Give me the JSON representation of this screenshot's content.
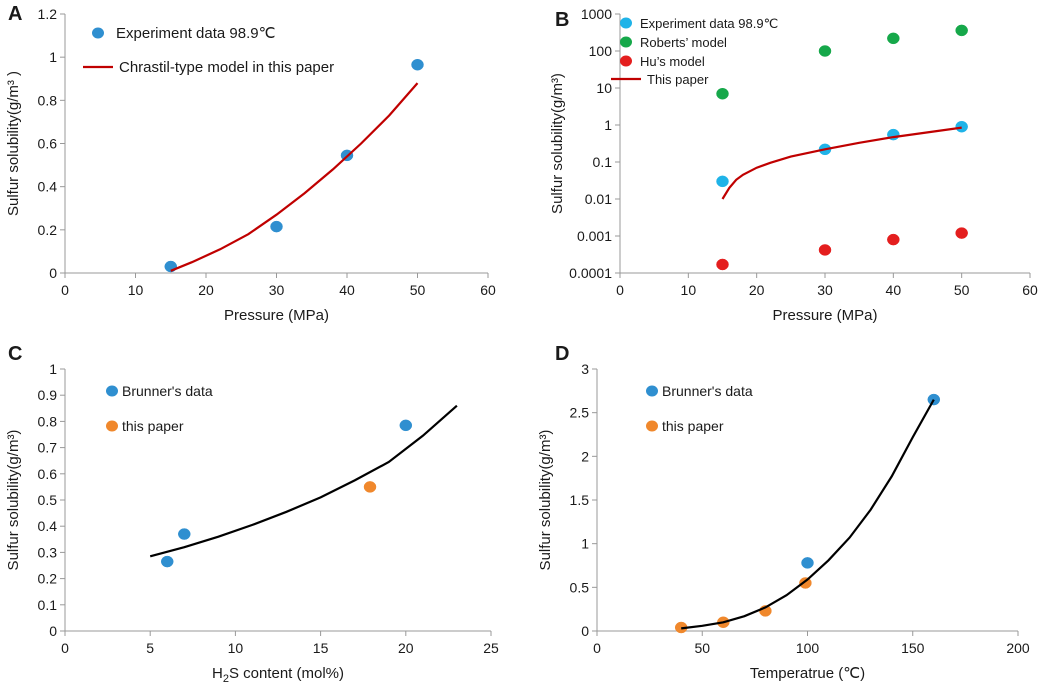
{
  "colors": {
    "blue": "#2f8fd0",
    "cyan": "#1fb3e8",
    "green": "#16a84a",
    "red": "#e41e1e",
    "orange": "#f0882c",
    "fit_red": "#c00000",
    "fit_black": "#000000",
    "axis": "#999999"
  },
  "chart_data": [
    {
      "panel": "A",
      "type": "scatter",
      "xlabel": "Pressure (MPa)",
      "ylabel": "Sulfur solubility(g/m³ )",
      "xlim": [
        0,
        60
      ],
      "ylim": [
        0,
        1.2
      ],
      "x_ticks": [
        "0",
        "10",
        "20",
        "30",
        "40",
        "50",
        "60"
      ],
      "y_ticks": [
        "0",
        "0.2",
        "0.4",
        "0.6",
        "0.8",
        "1",
        "1.2"
      ],
      "series": [
        {
          "name": "Experiment data 98.9℃",
          "kind": "points",
          "color": "#2f8fd0",
          "x": [
            15,
            30,
            40,
            50
          ],
          "y": [
            0.03,
            0.215,
            0.545,
            0.965
          ]
        },
        {
          "name": "Chrastil-type model in this paper",
          "kind": "line",
          "color": "#c00000",
          "x": [
            15,
            18,
            22,
            26,
            30,
            34,
            38,
            42,
            46,
            50
          ],
          "y": [
            0.01,
            0.05,
            0.11,
            0.18,
            0.27,
            0.37,
            0.48,
            0.6,
            0.73,
            0.88
          ]
        }
      ]
    },
    {
      "panel": "B",
      "type": "scatter",
      "yscale": "log",
      "xlabel": "Pressure (MPa)",
      "ylabel": "Sulfur solubility(g/m³)",
      "xlim": [
        0,
        60
      ],
      "ylim": [
        0.0001,
        1000
      ],
      "x_ticks": [
        "0",
        "10",
        "20",
        "30",
        "40",
        "50",
        "60"
      ],
      "y_ticks": [
        "0.0001",
        "0.001",
        "0.01",
        "0.1",
        "1",
        "10",
        "100",
        "1000"
      ],
      "series": [
        {
          "name": "Experiment data 98.9℃",
          "kind": "points",
          "color": "#1fb3e8",
          "x": [
            15,
            30,
            40,
            50
          ],
          "y": [
            0.03,
            0.22,
            0.55,
            0.9
          ]
        },
        {
          "name": "Roberts’ model",
          "kind": "points",
          "color": "#16a84a",
          "x": [
            15,
            30,
            40,
            50
          ],
          "y": [
            7,
            100,
            220,
            360
          ]
        },
        {
          "name": "Hu’s model",
          "kind": "points",
          "color": "#e41e1e",
          "x": [
            15,
            30,
            40,
            50
          ],
          "y": [
            0.00017,
            0.00042,
            0.0008,
            0.0012
          ]
        },
        {
          "name": "This paper",
          "kind": "line",
          "color": "#c00000",
          "x": [
            15,
            16,
            17,
            18,
            20,
            22,
            25,
            30,
            35,
            40,
            45,
            50
          ],
          "y": [
            0.01,
            0.02,
            0.033,
            0.045,
            0.07,
            0.095,
            0.14,
            0.22,
            0.33,
            0.47,
            0.63,
            0.85
          ]
        }
      ]
    },
    {
      "panel": "C",
      "type": "scatter",
      "xlabel_pre": "H",
      "xlabel_sub": "2",
      "xlabel_post": "S content (mol%)",
      "ylabel": "Sulfur solubility(g/m³)",
      "xlim": [
        0,
        25
      ],
      "ylim": [
        0,
        1
      ],
      "x_ticks": [
        "0",
        "5",
        "10",
        "15",
        "20",
        "25"
      ],
      "y_ticks": [
        "0",
        "0.1",
        "0.2",
        "0.3",
        "0.4",
        "0.5",
        "0.6",
        "0.7",
        "0.8",
        "0.9",
        "1"
      ],
      "series": [
        {
          "name": "Brunner's data",
          "kind": "points",
          "color": "#2f8fd0",
          "x": [
            6.0,
            7.0,
            20.0
          ],
          "y": [
            0.265,
            0.37,
            0.785
          ]
        },
        {
          "name": "this paper",
          "kind": "points",
          "color": "#f0882c",
          "x": [
            17.9
          ],
          "y": [
            0.55
          ]
        },
        {
          "name": "fit",
          "kind": "line",
          "color": "#000000",
          "x": [
            5,
            7,
            9,
            11,
            13,
            15,
            17,
            19,
            21,
            23
          ],
          "y": [
            0.285,
            0.32,
            0.36,
            0.405,
            0.455,
            0.51,
            0.575,
            0.645,
            0.745,
            0.86
          ]
        }
      ]
    },
    {
      "panel": "D",
      "type": "scatter",
      "xlabel": "Temperatrue (℃)",
      "ylabel": "Sulfur solubility(g/m³)",
      "xlim": [
        0,
        200
      ],
      "ylim": [
        0,
        3
      ],
      "x_ticks": [
        "0",
        "50",
        "100",
        "150",
        "200"
      ],
      "y_ticks": [
        "0",
        "0.5",
        "1",
        "1.5",
        "2",
        "2.5",
        "3"
      ],
      "series": [
        {
          "name": "Brunner's data",
          "kind": "points",
          "color": "#2f8fd0",
          "x": [
            100,
            160
          ],
          "y": [
            0.78,
            2.65
          ]
        },
        {
          "name": "this paper",
          "kind": "points",
          "color": "#f0882c",
          "x": [
            40,
            60,
            80,
            99
          ],
          "y": [
            0.04,
            0.1,
            0.23,
            0.55
          ]
        },
        {
          "name": "fit",
          "kind": "line",
          "color": "#000000",
          "x": [
            40,
            50,
            60,
            70,
            80,
            90,
            100,
            110,
            120,
            130,
            140,
            150,
            160
          ],
          "y": [
            0.03,
            0.06,
            0.1,
            0.17,
            0.27,
            0.41,
            0.59,
            0.81,
            1.07,
            1.39,
            1.77,
            2.22,
            2.65
          ]
        }
      ]
    }
  ]
}
